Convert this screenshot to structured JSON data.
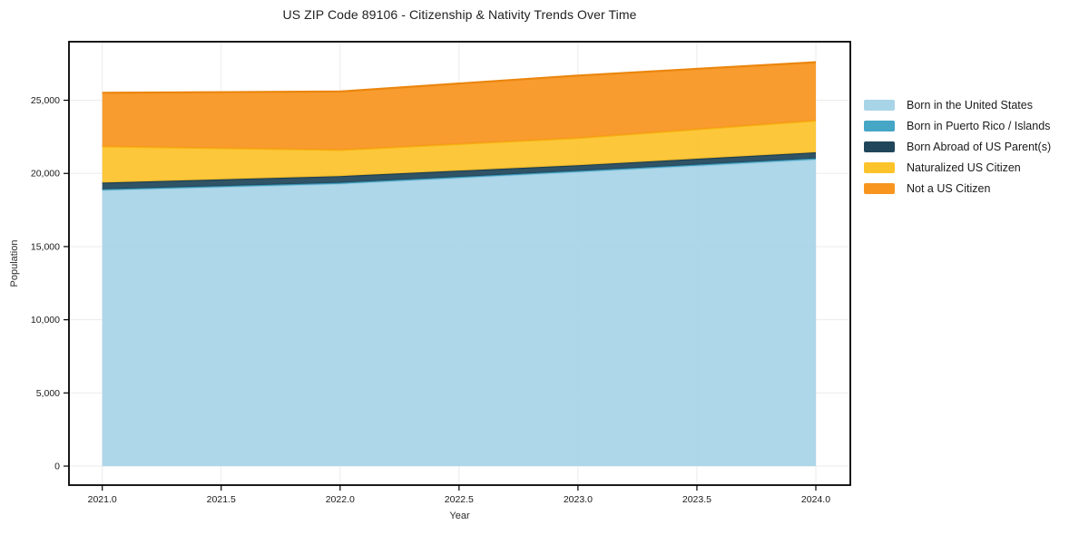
{
  "title": "US ZIP Code 89106 - Citizenship & Nativity Trends Over Time",
  "chart_data": {
    "type": "area",
    "stacked": true,
    "title": "US ZIP Code 89106 - Citizenship & Nativity Trends Over Time",
    "xlabel": "Year",
    "ylabel": "Population",
    "x": [
      2021,
      2022,
      2023,
      2024
    ],
    "series": [
      {
        "name": "Born in the United States",
        "color": "#a8d4e7",
        "edge_color": "#94c9e0",
        "values": [
          18860,
          19300,
          20110,
          20960
        ]
      },
      {
        "name": "Born in Puerto Rico / Islands",
        "color": "#45a6c6",
        "edge_color": "#3b98b8",
        "values": [
          60,
          60,
          60,
          70
        ]
      },
      {
        "name": "Born Abroad of US Parent(s)",
        "color": "#20465a",
        "edge_color": "#1b3d4f",
        "values": [
          450,
          460,
          390,
          410
        ]
      },
      {
        "name": "Naturalized US Citizen",
        "color": "#fcc32b",
        "edge_color": "#f6b30f",
        "values": [
          2480,
          1780,
          1860,
          2170
        ]
      },
      {
        "name": "Not a US Citizen",
        "color": "#f7951f",
        "edge_color": "#eb860e",
        "values": [
          3660,
          4000,
          4270,
          3990
        ]
      }
    ],
    "x_ticks": {
      "values": [
        2021.0,
        2021.5,
        2022.0,
        2022.5,
        2023.0,
        2023.5,
        2024.0
      ],
      "labels": [
        "2021.0",
        "2021.5",
        "2022.0",
        "2022.5",
        "2023.0",
        "2023.5",
        "2024.0"
      ]
    },
    "y_ticks": {
      "values": [
        0,
        5000,
        10000,
        15000,
        20000,
        25000
      ],
      "labels": [
        "0",
        "5,000",
        "10,000",
        "15,000",
        "20,000",
        "25,000"
      ]
    },
    "xlim": [
      2020.86,
      2024.145
    ],
    "ylim": [
      -1300,
      29000
    ],
    "grid": true,
    "legend_position": "right",
    "background": "#ffffff",
    "grid_color": "#ebebeb",
    "spine_color": "#000000"
  }
}
